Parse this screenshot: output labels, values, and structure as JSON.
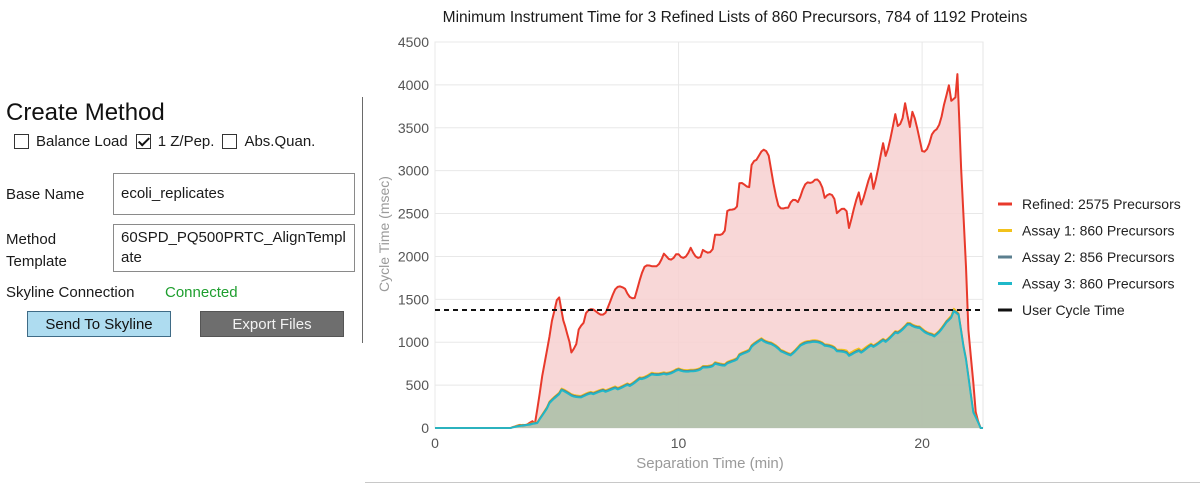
{
  "method_panel": {
    "title": "Create Method",
    "options": [
      {
        "label": "Balance Load",
        "checked": false
      },
      {
        "label": "1 Z/Pep.",
        "checked": true
      },
      {
        "label": "Abs.Quan.",
        "checked": false
      }
    ],
    "base_name_label": "Base Name",
    "base_name_value": "ecoli_replicates",
    "method_template_label": "Method Template",
    "method_template_value": "60SPD_PQ500PRTC_AlignTemplate",
    "connection_label": "Skyline Connection",
    "connection_status": "Connected",
    "send_button": "Send To Skyline",
    "export_button": "Export Files"
  },
  "chart_data": {
    "type": "area",
    "title": "Minimum Instrument Time for 3 Refined Lists of 860 Precursors, 784 of 1192 Proteins",
    "xlabel": "Separation Time (min)",
    "ylabel": "Cycle Time (msec)",
    "xlim": [
      0,
      22.5
    ],
    "ylim": [
      0,
      4500
    ],
    "x_ticks": [
      0,
      10,
      20
    ],
    "y_ticks": [
      0,
      500,
      1000,
      1500,
      2000,
      2500,
      3000,
      3500,
      4000,
      4500
    ],
    "grid": true,
    "legend_position": "right",
    "series": [
      {
        "name": "Refined: 2575 Precursors",
        "color": "#e8392b",
        "fill": "#f7d0d0",
        "x": [
          0,
          3.1,
          3.4,
          4.1,
          4.4,
          4.8,
          5.1,
          5.35,
          5.6,
          5.9,
          6.2,
          6.6,
          7.0,
          7.4,
          7.8,
          8.2,
          8.6,
          9.0,
          9.5,
          10.0,
          10.5,
          11.0,
          11.5,
          12.0,
          12.5,
          13.0,
          13.3,
          13.7,
          14.1,
          14.5,
          15.0,
          15.5,
          16.0,
          16.5,
          17.0,
          17.5,
          18.0,
          18.5,
          19.0,
          19.3,
          19.6,
          20.0,
          20.5,
          20.9,
          21.2,
          21.45,
          21.6,
          21.9,
          22.2,
          22.4,
          22.5
        ],
        "values": [
          0,
          0,
          30,
          70,
          600,
          1300,
          1570,
          1150,
          900,
          1100,
          1300,
          1350,
          1400,
          1550,
          1650,
          1550,
          1800,
          1950,
          2050,
          2050,
          2100,
          2050,
          2200,
          2450,
          2750,
          2950,
          3150,
          3100,
          2700,
          2500,
          2650,
          2850,
          2700,
          2550,
          2400,
          2700,
          2900,
          3300,
          3650,
          3750,
          3550,
          3300,
          3500,
          3850,
          3950,
          4000,
          3000,
          1200,
          200,
          0,
          0
        ]
      },
      {
        "name": "Assay 1: 860 Precursors",
        "color": "#f2c21b",
        "x": [
          0,
          3.1,
          3.4,
          4.2,
          4.7,
          5.2,
          5.6,
          6.0,
          6.5,
          7.0,
          7.5,
          8.0,
          8.5,
          9.0,
          9.5,
          10.0,
          10.5,
          11.0,
          11.5,
          12.0,
          12.5,
          13.0,
          13.4,
          13.8,
          14.2,
          14.6,
          15.0,
          15.5,
          16.0,
          16.5,
          17.0,
          17.5,
          18.0,
          18.5,
          19.0,
          19.5,
          20.0,
          20.5,
          21.0,
          21.3,
          21.5,
          21.8,
          22.1,
          22.4,
          22.5
        ],
        "values": [
          0,
          0,
          30,
          60,
          300,
          450,
          400,
          380,
          420,
          450,
          480,
          520,
          600,
          650,
          650,
          700,
          680,
          720,
          760,
          760,
          850,
          950,
          1060,
          1000,
          900,
          880,
          970,
          1020,
          980,
          920,
          880,
          920,
          980,
          1040,
          1140,
          1240,
          1170,
          1090,
          1250,
          1370,
          1330,
          800,
          200,
          0,
          0
        ]
      },
      {
        "name": "Assay 2: 856 Precursors",
        "color": "#5b7f8f",
        "x": [
          0,
          3.1,
          3.4,
          4.2,
          4.7,
          5.2,
          5.6,
          6.0,
          6.5,
          7.0,
          7.5,
          8.0,
          8.5,
          9.0,
          9.5,
          10.0,
          10.5,
          11.0,
          11.5,
          12.0,
          12.5,
          13.0,
          13.4,
          13.8,
          14.2,
          14.6,
          15.0,
          15.5,
          16.0,
          16.5,
          17.0,
          17.5,
          18.0,
          18.5,
          19.0,
          19.5,
          20.0,
          20.5,
          21.0,
          21.3,
          21.5,
          21.8,
          22.1,
          22.4,
          22.5
        ],
        "values": [
          0,
          0,
          25,
          55,
          290,
          440,
          390,
          370,
          410,
          440,
          470,
          510,
          590,
          640,
          640,
          690,
          670,
          710,
          750,
          750,
          840,
          940,
          1050,
          990,
          890,
          870,
          960,
          1010,
          970,
          910,
          860,
          900,
          970,
          1030,
          1130,
          1230,
          1160,
          1080,
          1240,
          1350,
          1320,
          790,
          190,
          0,
          0
        ]
      },
      {
        "name": "Assay 3: 860 Precursors",
        "color": "#1fb8c9",
        "x": [
          0,
          3.1,
          3.4,
          4.2,
          4.7,
          5.2,
          5.6,
          6.0,
          6.5,
          7.0,
          7.5,
          8.0,
          8.5,
          9.0,
          9.5,
          10.0,
          10.5,
          11.0,
          11.5,
          12.0,
          12.5,
          13.0,
          13.4,
          13.8,
          14.2,
          14.6,
          15.0,
          15.5,
          16.0,
          16.5,
          17.0,
          17.5,
          18.0,
          18.5,
          19.0,
          19.5,
          20.0,
          20.5,
          21.0,
          21.3,
          21.5,
          21.8,
          22.1,
          22.4,
          22.5
        ],
        "values": [
          0,
          0,
          20,
          50,
          280,
          430,
          380,
          360,
          400,
          430,
          460,
          500,
          580,
          630,
          630,
          680,
          660,
          700,
          740,
          740,
          830,
          930,
          1040,
          980,
          880,
          860,
          950,
          1000,
          960,
          900,
          850,
          890,
          960,
          1020,
          1120,
          1220,
          1150,
          1070,
          1230,
          1340,
          1310,
          780,
          180,
          0,
          0
        ]
      },
      {
        "name": "User Cycle Time",
        "color": "#111111",
        "dashed": true,
        "x": [
          0,
          22.5
        ],
        "values": [
          1375,
          1375
        ]
      }
    ]
  }
}
